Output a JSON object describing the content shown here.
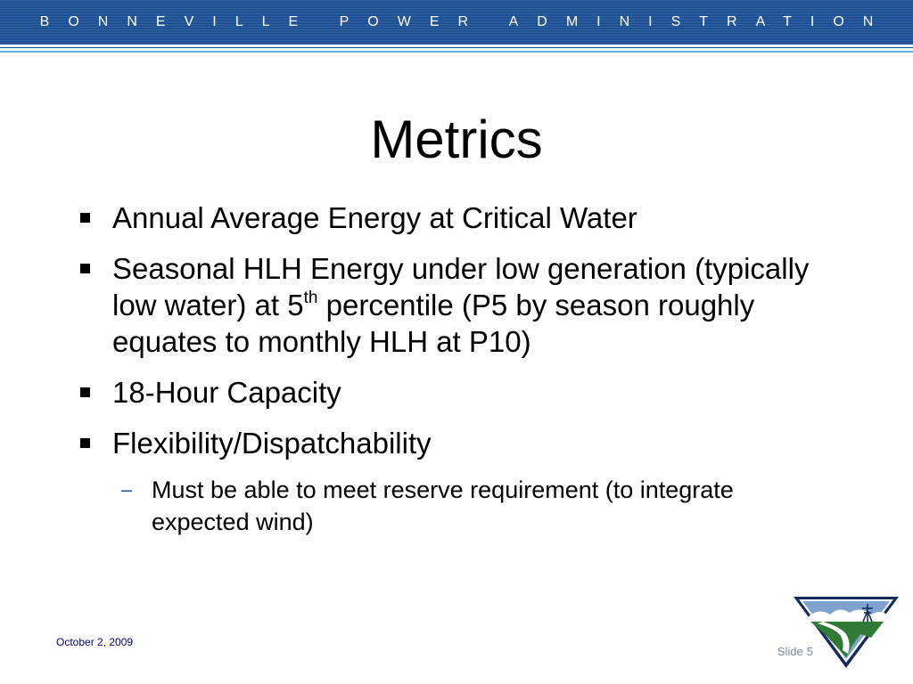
{
  "header": {
    "banner_text": "BONNEVILLE POWER ADMINISTRATION"
  },
  "slide": {
    "title": "Metrics",
    "bullets": [
      {
        "text": "Annual Average Energy at Critical Water"
      },
      {
        "text_before": "Seasonal HLH Energy under low generation (typically low water) at 5",
        "superscript": "th",
        "text_after": " percentile (P5 by season roughly equates to monthly HLH at P10)"
      },
      {
        "text": "18-Hour Capacity"
      },
      {
        "text": "Flexibility/Dispatchability"
      }
    ],
    "sub_bullets": [
      {
        "text": "Must be able to meet reserve requirement (to integrate expected wind)"
      }
    ]
  },
  "footer": {
    "date": "October 2, 2009",
    "slide_label": "Slide",
    "slide_number": "5"
  },
  "colors": {
    "banner_blue": "#1d4f94",
    "accent_cyan": "#5fb4d8",
    "logo_navy": "#152a5c",
    "logo_green": "#2f7a35"
  },
  "icons": {
    "logo": "bpa-logo-icon",
    "bullet": "square-bullet-icon"
  }
}
